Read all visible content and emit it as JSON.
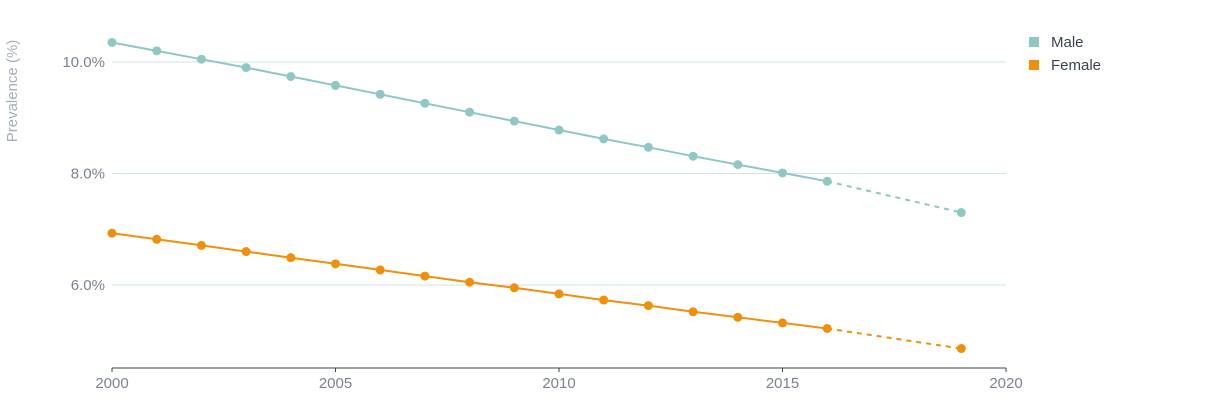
{
  "chart_data": {
    "type": "line",
    "ylabel": "Prevalence (%)",
    "xlabel": "",
    "xlim": [
      2000,
      2020
    ],
    "ylim": [
      4.5,
      10.5
    ],
    "x_ticks": [
      2000,
      2005,
      2010,
      2015,
      2020
    ],
    "x_tick_labels": [
      "2000",
      "2005",
      "2010",
      "2015",
      "2020"
    ],
    "y_ticks": [
      6,
      8,
      10
    ],
    "y_tick_labels": [
      "6.0%",
      "8.0%",
      "10.0%"
    ],
    "grid": "horizontal",
    "legend_position": "top-right",
    "projection_from": 2016,
    "series": [
      {
        "name": "Male",
        "color": "#8fc7c5",
        "x": [
          2000,
          2001,
          2002,
          2003,
          2004,
          2005,
          2006,
          2007,
          2008,
          2009,
          2010,
          2011,
          2012,
          2013,
          2014,
          2015,
          2016,
          2019
        ],
        "values": [
          10.35,
          10.2,
          10.05,
          9.9,
          9.74,
          9.58,
          9.42,
          9.26,
          9.1,
          8.94,
          8.78,
          8.62,
          8.47,
          8.31,
          8.16,
          8.01,
          7.86,
          7.3
        ]
      },
      {
        "name": "Female",
        "color": "#f0900a",
        "x": [
          2000,
          2001,
          2002,
          2003,
          2004,
          2005,
          2006,
          2007,
          2008,
          2009,
          2010,
          2011,
          2012,
          2013,
          2014,
          2015,
          2016,
          2019
        ],
        "values": [
          6.93,
          6.82,
          6.71,
          6.6,
          6.49,
          6.38,
          6.27,
          6.16,
          6.05,
          5.95,
          5.84,
          5.73,
          5.63,
          5.52,
          5.42,
          5.32,
          5.22,
          4.86
        ]
      }
    ]
  }
}
